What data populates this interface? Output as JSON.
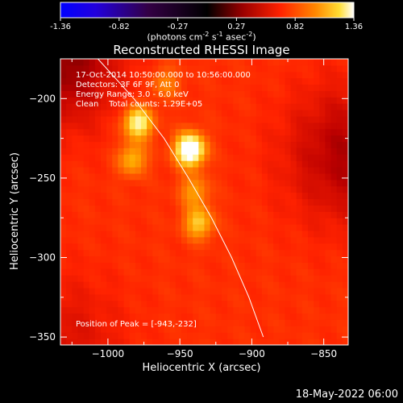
{
  "colorbar": {
    "ticks": [
      "-1.36",
      "-0.82",
      "-0.27",
      "0.27",
      "0.82",
      "1.36"
    ],
    "unit_prefix": "(photons cm",
    "unit_exp1": "-2",
    "unit_mid": " s",
    "unit_exp2": "-1",
    "unit_mid2": " asec",
    "unit_exp3": "-2",
    "unit_suffix": ")"
  },
  "title": "Reconstructed RHESSI Image",
  "info": {
    "line1": "17-Oct-2014 10:50:00.000 to 10:56:00.000",
    "line2": "Detectors: 3F 6F 9F, Att 0",
    "line3": "Energy Range: 3.0 - 6.0 keV",
    "line4": "Clean    Total counts: 1.29E+05"
  },
  "peak_label": "Position of Peak = [-943,-232]",
  "footer_date": "18-May-2022 06:00",
  "chart_data": {
    "type": "heatmap",
    "title": "Reconstructed RHESSI Image",
    "xlabel": "Heliocentric X (arcsec)",
    "ylabel": "Heliocentric Y (arcsec)",
    "xlim": [
      -1033,
      -833
    ],
    "ylim": [
      -355,
      -175
    ],
    "x_ticks": [
      -1000,
      -950,
      -900,
      -850
    ],
    "y_ticks": [
      -200,
      -250,
      -300,
      -350
    ],
    "colorbar_range": [
      -1.36,
      1.36
    ],
    "colormap": [
      "#0000ff",
      "#3300cc",
      "#330044",
      "#000000",
      "#550000",
      "#bb0000",
      "#ff2200",
      "#ff6600",
      "#ffaa00",
      "#ffee66",
      "#ffffff"
    ],
    "peak": [
      -943,
      -232
    ],
    "sources": [
      {
        "x": -943,
        "y": -232,
        "amplitude": 1.36
      },
      {
        "x": -979,
        "y": -215,
        "amplitude": 0.95
      },
      {
        "x": -983,
        "y": -238,
        "amplitude": 0.55
      },
      {
        "x": -937,
        "y": -278,
        "amplitude": 0.65
      },
      {
        "x": -940,
        "y": -258,
        "amplitude": 0.45
      },
      {
        "x": -960,
        "y": -190,
        "amplitude": 0.35
      }
    ],
    "limb_arc": [
      [
        -1007,
        -175
      ],
      [
        -982,
        -200
      ],
      [
        -961,
        -225
      ],
      [
        -944,
        -250
      ],
      [
        -928,
        -275
      ],
      [
        -914,
        -300
      ],
      [
        -902,
        -325
      ],
      [
        -892,
        -350
      ]
    ]
  }
}
